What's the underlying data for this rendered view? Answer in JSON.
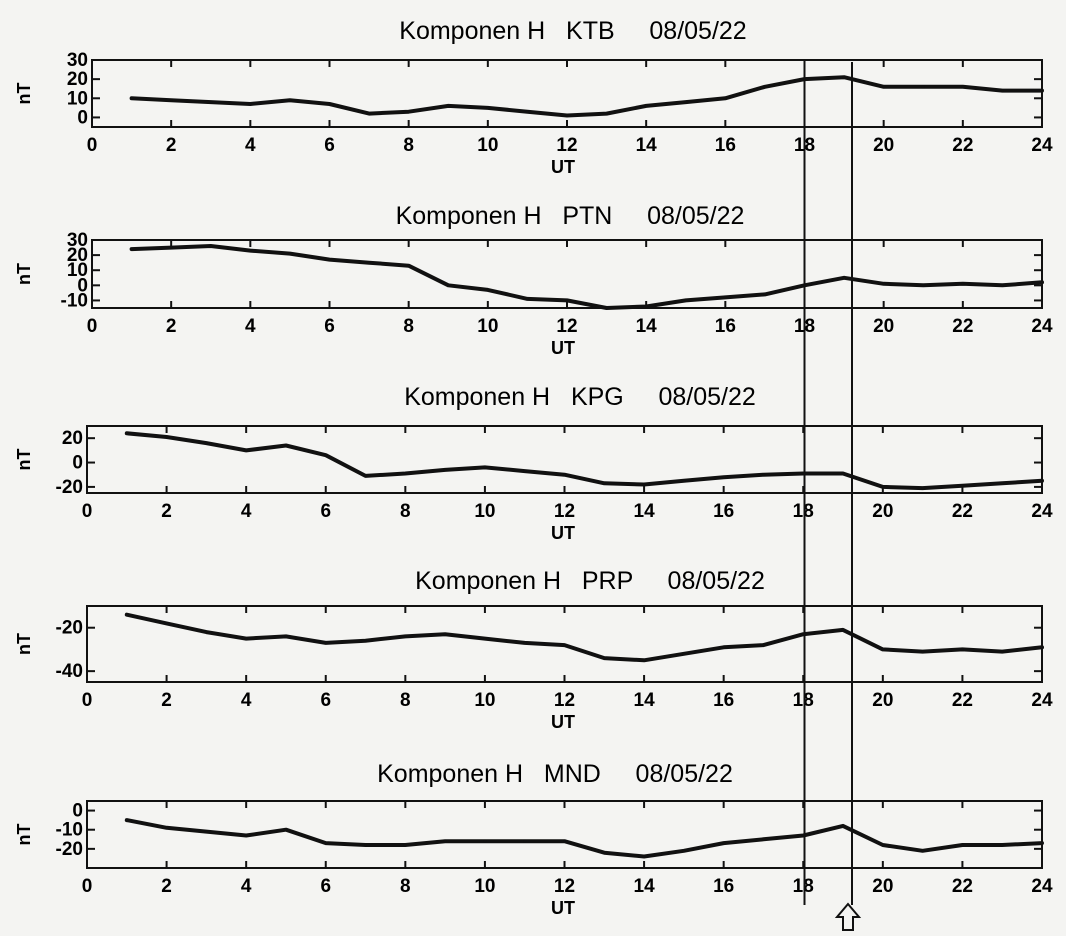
{
  "chart_data": [
    {
      "type": "line",
      "title": "Komponen H   KTB     08/05/22",
      "xlabel": "UT",
      "ylabel": "nT",
      "xlim": [
        0,
        24
      ],
      "ylim": [
        -5,
        30
      ],
      "xticks": [
        0,
        2,
        4,
        6,
        8,
        10,
        12,
        14,
        16,
        18,
        20,
        22,
        24
      ],
      "yticks": [
        0,
        10,
        20,
        30
      ],
      "x": [
        1,
        2,
        3,
        4,
        5,
        6,
        7,
        8,
        9,
        10,
        11,
        12,
        13,
        14,
        15,
        16,
        17,
        18,
        19,
        20,
        21,
        22,
        23,
        24
      ],
      "y": [
        10,
        9,
        8,
        7,
        9,
        7,
        2,
        3,
        6,
        5,
        3,
        1,
        2,
        6,
        8,
        10,
        16,
        20,
        21,
        16,
        16,
        16,
        14,
        14
      ]
    },
    {
      "type": "line",
      "title": "Komponen H   PTN     08/05/22",
      "xlabel": "UT",
      "ylabel": "nT",
      "xlim": [
        0,
        24
      ],
      "ylim": [
        -15,
        30
      ],
      "xticks": [
        0,
        2,
        4,
        6,
        8,
        10,
        12,
        14,
        16,
        18,
        20,
        22,
        24
      ],
      "yticks": [
        -10,
        0,
        10,
        20,
        30
      ],
      "x": [
        1,
        2,
        3,
        4,
        5,
        6,
        7,
        8,
        9,
        10,
        11,
        12,
        13,
        14,
        15,
        16,
        17,
        18,
        19,
        20,
        21,
        22,
        23,
        24
      ],
      "y": [
        24,
        25,
        26,
        23,
        21,
        17,
        15,
        13,
        0,
        -3,
        -9,
        -10,
        -15,
        -14,
        -10,
        -8,
        -6,
        0,
        5,
        1,
        0,
        1,
        0,
        2
      ]
    },
    {
      "type": "line",
      "title": "Komponen H   KPG     08/05/22",
      "xlabel": "UT",
      "ylabel": "nT",
      "xlim": [
        0,
        24
      ],
      "ylim": [
        -25,
        30
      ],
      "xticks": [
        0,
        2,
        4,
        6,
        8,
        10,
        12,
        14,
        16,
        18,
        20,
        22,
        24
      ],
      "yticks": [
        -20,
        0,
        20
      ],
      "x": [
        1,
        2,
        3,
        4,
        5,
        6,
        7,
        8,
        9,
        10,
        11,
        12,
        13,
        14,
        15,
        16,
        17,
        18,
        19,
        20,
        21,
        22,
        23,
        24
      ],
      "y": [
        24,
        21,
        16,
        10,
        14,
        6,
        -11,
        -9,
        -6,
        -4,
        -7,
        -10,
        -17,
        -18,
        -15,
        -12,
        -10,
        -9,
        -9,
        -20,
        -21,
        -19,
        -17,
        -15
      ]
    },
    {
      "type": "line",
      "title": "Komponen H   PRP     08/05/22",
      "xlabel": "UT",
      "ylabel": "nT",
      "xlim": [
        0,
        24
      ],
      "ylim": [
        -45,
        -10
      ],
      "xticks": [
        0,
        2,
        4,
        6,
        8,
        10,
        12,
        14,
        16,
        18,
        20,
        22,
        24
      ],
      "yticks": [
        -40,
        -20
      ],
      "x": [
        1,
        2,
        3,
        4,
        5,
        6,
        7,
        8,
        9,
        10,
        11,
        12,
        13,
        14,
        15,
        16,
        17,
        18,
        19,
        20,
        21,
        22,
        23,
        24
      ],
      "y": [
        -14,
        -18,
        -22,
        -25,
        -24,
        -27,
        -26,
        -24,
        -23,
        -25,
        -27,
        -28,
        -34,
        -35,
        -32,
        -29,
        -28,
        -23,
        -21,
        -30,
        -31,
        -30,
        -31,
        -29
      ]
    },
    {
      "type": "line",
      "title": "Komponen H   MND     08/05/22",
      "xlabel": "UT",
      "ylabel": "nT",
      "xlim": [
        0,
        24
      ],
      "ylim": [
        -30,
        5
      ],
      "xticks": [
        0,
        2,
        4,
        6,
        8,
        10,
        12,
        14,
        16,
        18,
        20,
        22,
        24
      ],
      "yticks": [
        -20,
        -10,
        0
      ],
      "x": [
        1,
        2,
        3,
        4,
        5,
        6,
        7,
        8,
        9,
        10,
        11,
        12,
        13,
        14,
        15,
        16,
        17,
        18,
        19,
        20,
        21,
        22,
        23,
        24
      ],
      "y": [
        -5,
        -9,
        -11,
        -13,
        -10,
        -17,
        -18,
        -18,
        -16,
        -16,
        -16,
        -16,
        -22,
        -24,
        -21,
        -17,
        -15,
        -13,
        -8,
        -18,
        -21,
        -18,
        -18,
        -17
      ]
    }
  ],
  "markers": {
    "vertical_lines_ut": [
      18,
      19.2
    ],
    "arrow_ut": 19.2
  },
  "style": {
    "line_color": "#111111",
    "background": "#f4f4f2"
  }
}
